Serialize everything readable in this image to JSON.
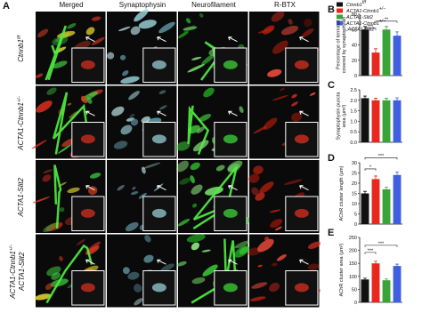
{
  "panel_a": {
    "letter": "A",
    "columns": [
      "Merged",
      "Synaptophysin",
      "Neurofilament",
      "R-BTX"
    ],
    "rows": [
      {
        "lines": [
          {
            "text": "Ctnnb1",
            "sup": "f/f"
          }
        ]
      },
      {
        "lines": [
          {
            "text": "ACTA1-Ctnnb1",
            "sup": "+/−"
          }
        ]
      },
      {
        "lines": [
          {
            "text": "ACTA1-Slit2"
          }
        ]
      },
      {
        "lines": [
          {
            "text": "ACTA1-Ctnnb1",
            "sup": "+/−"
          },
          {
            "text": "ACTA1-Slit2"
          }
        ]
      }
    ]
  },
  "legend": [
    {
      "color": "#111111",
      "lines": [
        {
          "text": "Ctnnb1",
          "sup": "f/f"
        }
      ]
    },
    {
      "color": "#e8281e",
      "lines": [
        {
          "text": "ACTA1-Ctnnb1",
          "sup": "+/−"
        }
      ]
    },
    {
      "color": "#3aa33a",
      "lines": [
        {
          "text": "ACTA1-Slit2"
        }
      ]
    },
    {
      "color": "#3f5fe0",
      "lines": [
        {
          "text": "ACTA1-Ctnnb1",
          "sup": "+/−"
        },
        {
          "text": ";ACTA1-Slit2"
        }
      ]
    }
  ],
  "charts": [
    {
      "letter": "B",
      "ylabel": [
        "Percentage of terminal",
        "covered by synaptophysin"
      ],
      "ylim": [
        0,
        80
      ],
      "yticks": [
        0,
        20,
        40,
        60,
        80
      ],
      "values": [
        60,
        30,
        60,
        52
      ],
      "errors": [
        4,
        5,
        4,
        5
      ],
      "annotations": [
        "***",
        "**"
      ]
    },
    {
      "letter": "C",
      "ylabel": [
        "Synaptophysin puncta",
        "area (μm²)"
      ],
      "ylim": [
        0,
        2.5
      ],
      "yticks": [
        {
          "value": 0,
          "label": "0.0"
        },
        {
          "value": 0.5,
          "label": "0.5"
        },
        {
          "value": 1,
          "label": "1.0"
        },
        {
          "value": 1.5,
          "label": "1.5"
        },
        {
          "value": 2,
          "label": "2.0"
        },
        {
          "value": 2.5,
          "label": "2.5"
        }
      ],
      "values": [
        2.1,
        2.0,
        2.0,
        2.0
      ],
      "errors": [
        0.1,
        0.1,
        0.1,
        0.12
      ],
      "annotations": []
    },
    {
      "letter": "D",
      "ylabel": [
        "AChR cluster length (μm)"
      ],
      "ylim": [
        0,
        30
      ],
      "yticks": [
        0,
        5,
        10,
        15,
        20,
        25,
        30
      ],
      "values": [
        15,
        22,
        17,
        24
      ],
      "errors": [
        1,
        1.5,
        1,
        1.5
      ],
      "annotations": [
        "*",
        "***"
      ]
    },
    {
      "letter": "E",
      "ylabel": [
        "AChR cluster area (μm²)"
      ],
      "ylim": [
        0,
        250
      ],
      "yticks": [
        0,
        50,
        100,
        150,
        200,
        250
      ],
      "values": [
        88,
        150,
        85,
        140
      ],
      "errors": [
        5,
        8,
        5,
        7
      ],
      "annotations": [
        "***",
        "***"
      ]
    }
  ]
}
